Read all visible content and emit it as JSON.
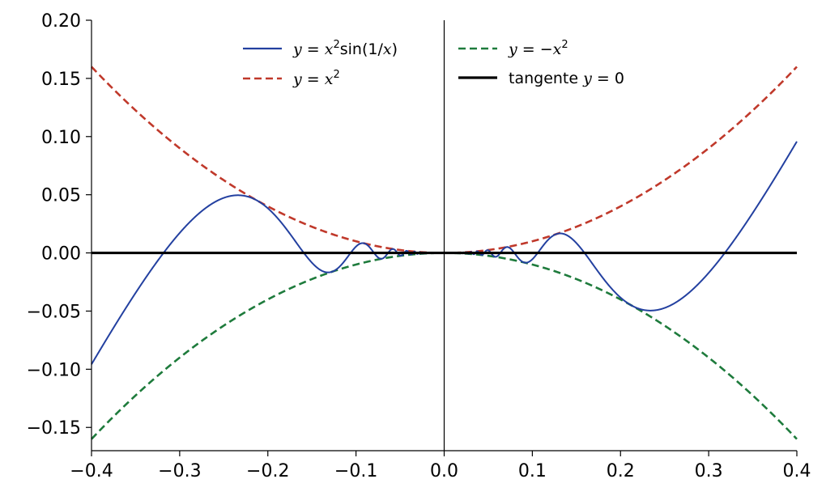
{
  "chart_data": {
    "type": "line",
    "title": "",
    "xlabel": "",
    "ylabel": "",
    "xlim": [
      -0.4,
      0.4
    ],
    "ylim": [
      -0.17,
      0.2
    ],
    "xticks": [
      -0.4,
      -0.3,
      -0.2,
      -0.1,
      0.0,
      0.1,
      0.2,
      0.3,
      0.4
    ],
    "xtick_labels": [
      "−0.4",
      "−0.3",
      "−0.2",
      "−0.1",
      "0.0",
      "0.1",
      "0.2",
      "0.3",
      "0.4"
    ],
    "yticks": [
      0.2,
      0.15,
      0.1,
      0.05,
      0.0,
      -0.05,
      -0.1,
      -0.15
    ],
    "ytick_labels": [
      "0.20",
      "0.15",
      "0.10",
      "0.05",
      "0.00",
      "−0.05",
      "−0.10",
      "−0.15"
    ],
    "grid": false,
    "legend_position": "top-center",
    "legend_columns": 2,
    "series": [
      {
        "id": "f",
        "name": "y = x²sin(1/x)",
        "function": "x^2*sin(1/x)",
        "color": "#2340a0",
        "style": "solid",
        "x": [
          -0.4,
          -0.32,
          -0.23,
          -0.16,
          -0.13,
          -0.095,
          -0.07,
          0.0,
          0.07,
          0.095,
          0.13,
          0.16,
          0.23,
          0.32,
          0.4
        ],
        "y": [
          -0.096,
          0.0,
          0.049,
          0.0,
          -0.017,
          0.008,
          -0.004,
          0.0,
          0.004,
          -0.008,
          0.017,
          0.0,
          -0.049,
          0.0,
          0.096
        ]
      },
      {
        "id": "upper",
        "name": "y = x²",
        "function": "x^2",
        "color": "#c0392b",
        "style": "dashed",
        "x": [
          -0.4,
          -0.2,
          0.0,
          0.2,
          0.4
        ],
        "y": [
          0.16,
          0.04,
          0.0,
          0.04,
          0.16
        ]
      },
      {
        "id": "lower",
        "name": "y = −x²",
        "function": "-x^2",
        "color": "#1e7b3c",
        "style": "dashed",
        "x": [
          -0.4,
          -0.2,
          0.0,
          0.2,
          0.4
        ],
        "y": [
          -0.16,
          -0.04,
          0.0,
          -0.04,
          -0.16
        ]
      },
      {
        "id": "tangent",
        "name": "tangente y = 0",
        "function": "0",
        "color": "#000000",
        "style": "solid-thick",
        "x": [
          -0.4,
          0.4
        ],
        "y": [
          0.0,
          0.0
        ]
      }
    ]
  },
  "legend": {
    "f": {
      "y": "y",
      "eq": " = ",
      "x": "x",
      "sup": "2",
      "rest": "sin(1/",
      "x2": "x",
      "close": ")"
    },
    "upper": {
      "y": "y",
      "eq": " = ",
      "x": "x",
      "sup": "2"
    },
    "lower": {
      "y": "y",
      "eq": " = −",
      "x": "x",
      "sup": "2"
    },
    "tangent": {
      "word": "tangente ",
      "y": "y",
      "eq": " = 0"
    }
  }
}
